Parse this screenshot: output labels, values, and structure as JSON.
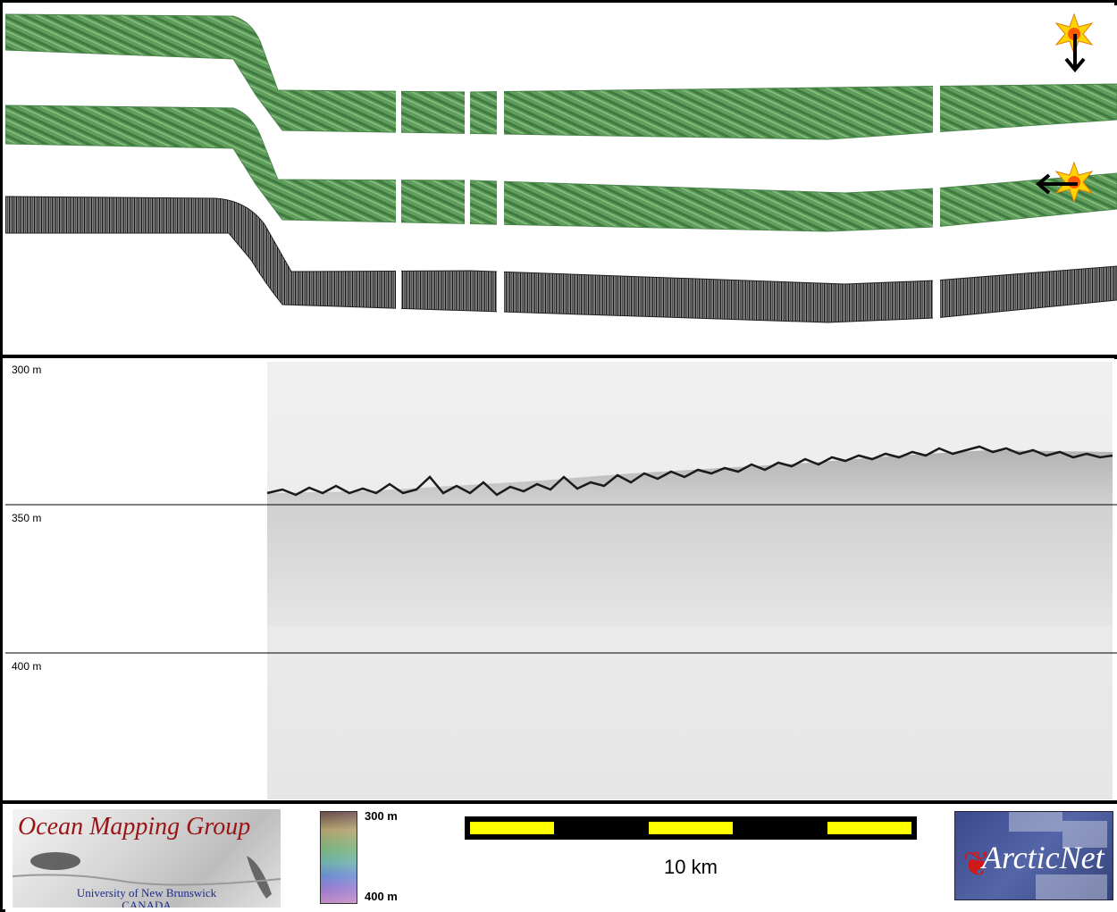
{
  "depth_labels": {
    "top": "300 m",
    "middle": "350 m",
    "bottom": "400 m"
  },
  "footer": {
    "omg_logo": {
      "title": "Ocean Mapping Group",
      "university": "University of New Brunswick",
      "country": "CANADA"
    },
    "colorbar": {
      "top_label": "300 m",
      "bottom_label": "400 m"
    },
    "scale": {
      "label": "10 km",
      "colors": {
        "bar": "#000000",
        "segment": "#ffff00"
      }
    },
    "arcticnet_logo": {
      "text": "ArcticNet"
    }
  },
  "icons": {
    "sun_light_source_top": "sun-icon",
    "sun_light_source_bottom": "sun-icon",
    "arrow_top": "arrow-down-icon",
    "arrow_bottom": "arrow-left-icon"
  },
  "colors": {
    "bathymetry_green": "#5a9a5a",
    "backscatter_gray": "#3a3a3a",
    "frame": "#000000"
  }
}
